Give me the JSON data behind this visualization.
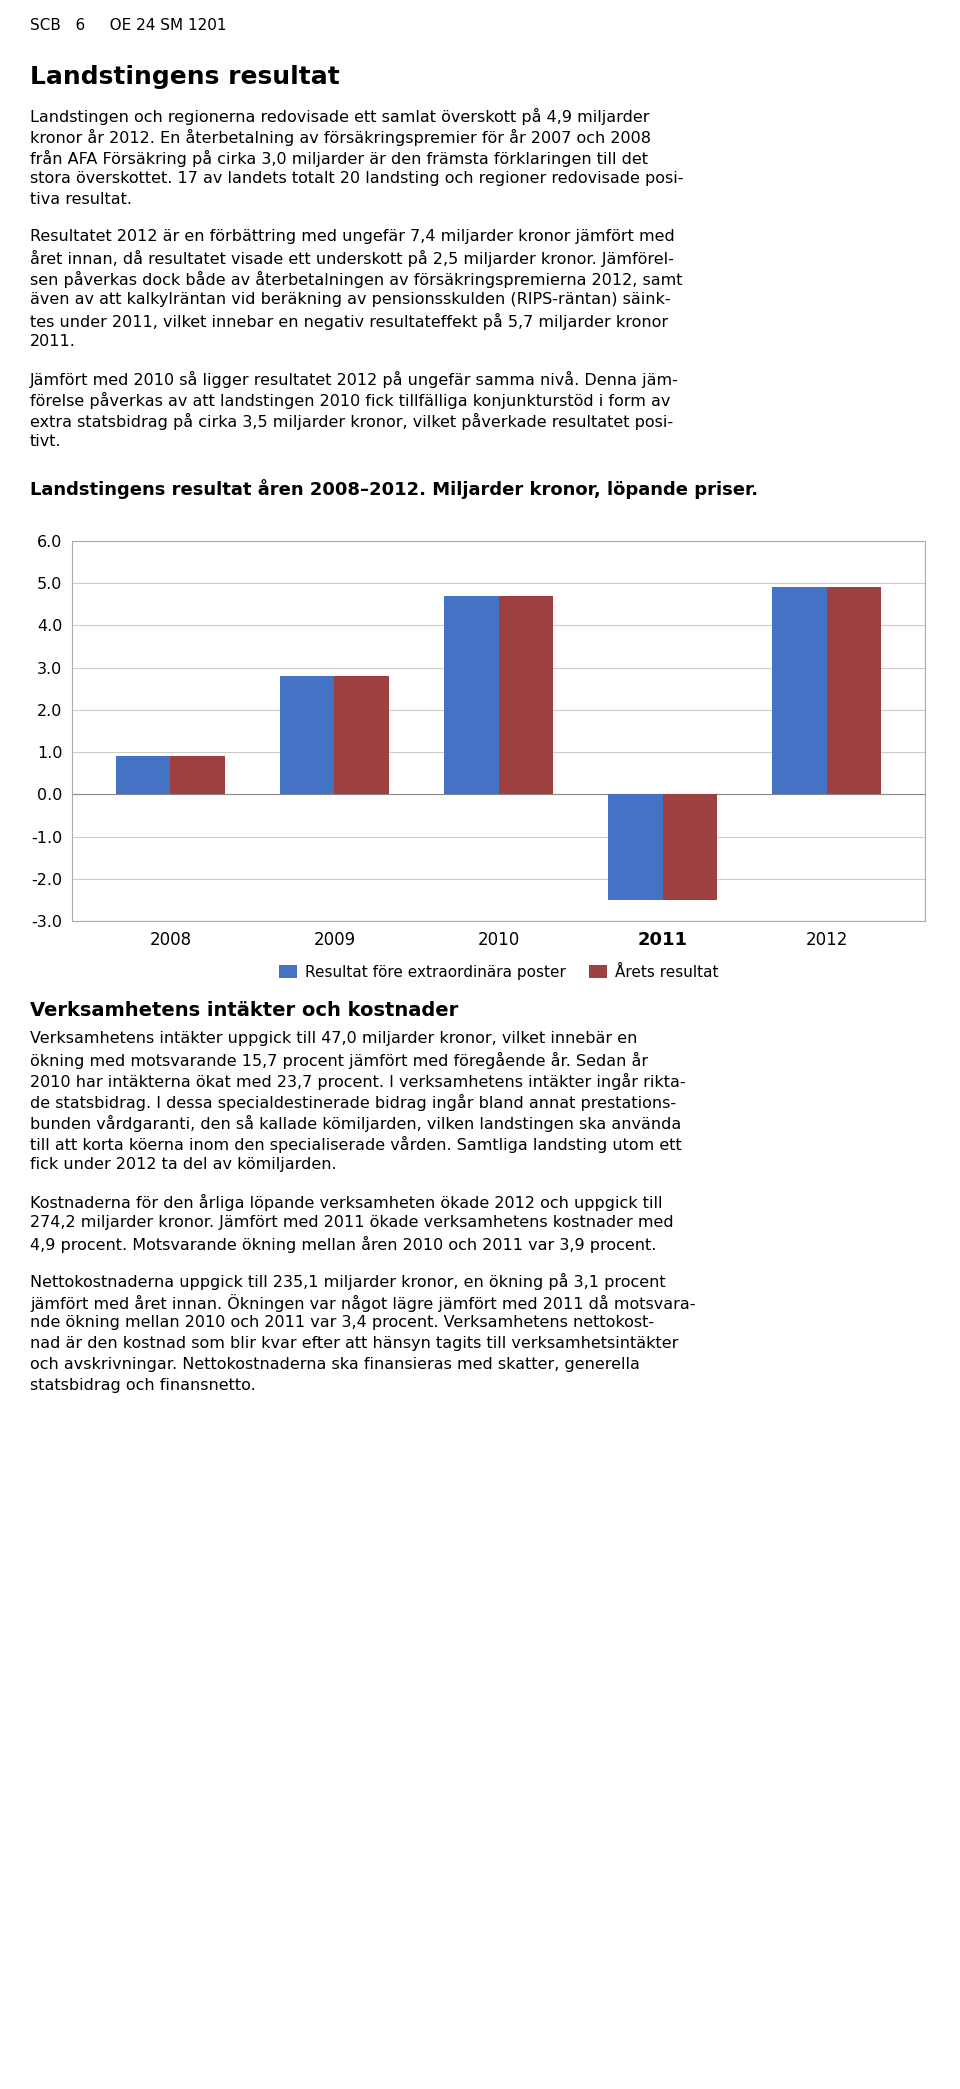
{
  "header": "SCB   6     OE 24 SM 1201",
  "section1_title": "Landstingens resultat",
  "para1_lines": [
    "Landstingen och regionerna redovisade ett samlat överskott på 4,9 miljarder",
    "kronor år 2012. En återbetalning av försäkringspremier för år 2007 och 2008",
    "från AFA Försäkring på cirka 3,0 miljarder är den främsta förklaringen till det",
    "stora överskottet. 17 av landets totalt 20 landsting och regioner redovisade posi-",
    "tiva resultat."
  ],
  "para2_lines": [
    "Resultatet 2012 är en förbättring med ungefär 7,4 miljarder kronor jämfört med",
    "året innan, då resultatet visade ett underskott på 2,5 miljarder kronor. Jämförel-",
    "sen påverkas dock både av återbetalningen av försäkringspremierna 2012, samt",
    "även av att kalkylräntan vid beräkning av pensionsskulden (RIPS-räntan) säink-",
    "tes under 2011, vilket innebar en negativ resultateffekt på 5,7 miljarder kronor",
    "2011."
  ],
  "para3_lines": [
    "Jämfört med 2010 så ligger resultatet 2012 på ungefär samma nivå. Denna jäm-",
    "förelse påverkas av att landstingen 2010 fick tillfälliga konjunkturstöd i form av",
    "extra statsbidrag på cirka 3,5 miljarder kronor, vilket påverkade resultatet posi-",
    "tivt."
  ],
  "chart_title": "Landstingens resultat åren 2008–2012. Miljarder kronor, löpande priser.",
  "years": [
    "2008",
    "2009",
    "2010",
    "2011",
    "2012"
  ],
  "bold_year": "2011",
  "blue_values": [
    0.9,
    2.8,
    4.7,
    -2.5,
    4.9
  ],
  "red_values": [
    0.9,
    2.8,
    4.7,
    -2.5,
    4.9
  ],
  "blue_color": "#4472C4",
  "red_color": "#9E4040",
  "ylim_min": -3.0,
  "ylim_max": 6.0,
  "ytick_step": 1.0,
  "legend_blue": "Resultat före extraordinära poster",
  "legend_red": "Årets resultat",
  "section2_title": "Verksamhetens intäkter och kostnader",
  "sec2_para1_lines": [
    "Verksamhetens intäkter uppgick till 47,0 miljarder kronor, vilket innebär en",
    "ökning med motsvarande 15,7 procent jämfört med föregående år. Sedan år",
    "2010 har intäkterna ökat med 23,7 procent. I verksamhetens intäkter ingår rikta-",
    "de statsbidrag. I dessa specialdestinerade bidrag ingår bland annat prestations-",
    "bunden vårdgaranti, den så kallade kömiljarden, vilken landstingen ska använda",
    "till att korta köerna inom den specialiserade vården. Samtliga landsting utom ett",
    "fick under 2012 ta del av kömiljarden."
  ],
  "sec2_para2_lines": [
    "Kostnaderna för den årliga löpande verksamheten ökade 2012 och uppgick till",
    "274,2 miljarder kronor. Jämfört med 2011 ökade verksamhetens kostnader med",
    "4,9 procent. Motsvarande ökning mellan åren 2010 och 2011 var 3,9 procent."
  ],
  "sec2_para3_lines": [
    "Nettokostnaderna uppgick till 235,1 miljarder kronor, en ökning på 3,1 procent",
    "jämfört med året innan. Ökningen var något lägre jämfört med 2011 då motsvara-",
    "nde ökning mellan 2010 och 2011 var 3,4 procent. Verksamhetens nettokost-",
    "nad är den kostnad som blir kvar efter att hänsyn tagits till verksamhetsintäkter",
    "och avskrivningar. Nettokostnaderna ska finansieras med skatter, generella",
    "statsbidrag och finansnetto."
  ],
  "bg_color": "#ffffff",
  "grid_color": "#cccccc",
  "border_color": "#aaaaaa"
}
